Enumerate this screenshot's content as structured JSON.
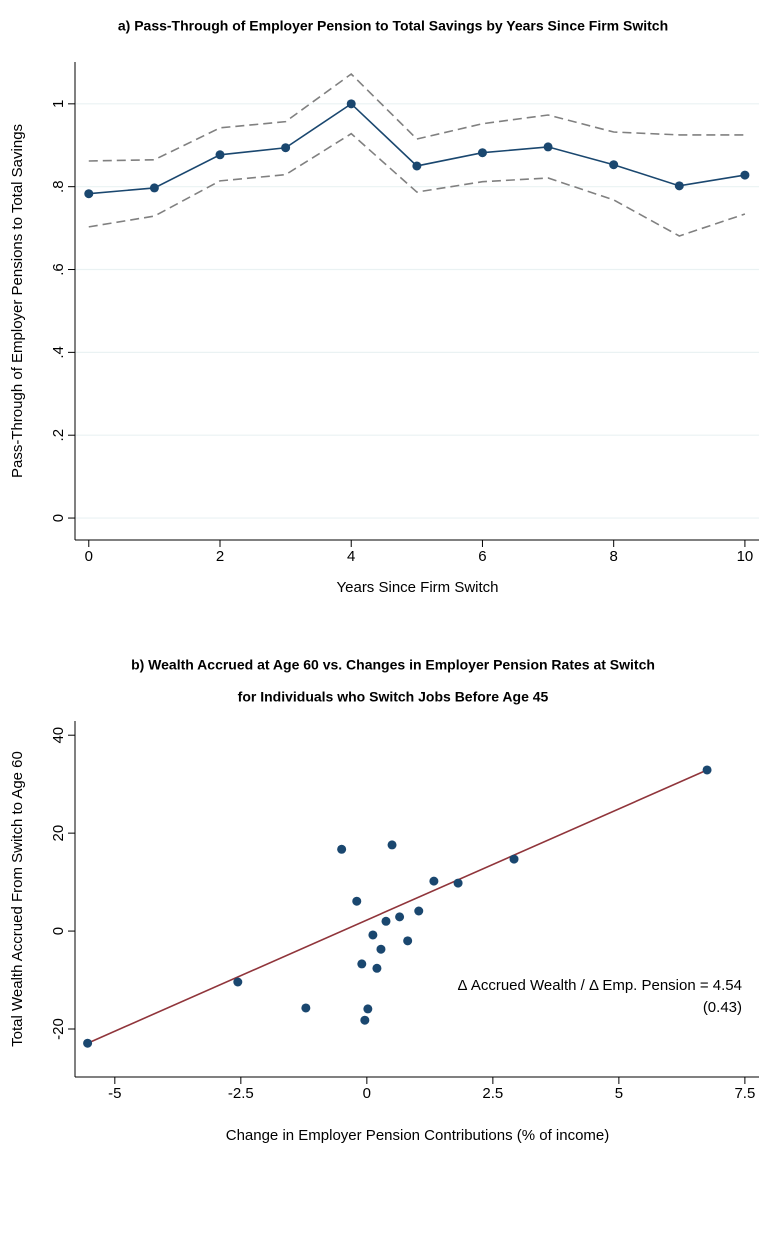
{
  "chart_data": [
    {
      "type": "line",
      "title": "a) Pass-Through of Employer Pension to Total Savings by Years Since Firm Switch",
      "x_label": "Years Since Firm Switch",
      "y_label": "Pass-Through of Employer Pensions to Total Savings",
      "x": [
        0,
        1,
        2,
        3,
        4,
        5,
        6,
        7,
        8,
        9,
        10
      ],
      "series": [
        {
          "color": "#1a476f",
          "style": "solid",
          "marker": true,
          "values": [
            0.783,
            0.797,
            0.877,
            0.894,
            1.0,
            0.85,
            0.882,
            0.896,
            0.853,
            0.802,
            0.828
          ]
        },
        {
          "color": "#808080",
          "style": "dashed",
          "marker": false,
          "values": [
            0.862,
            0.865,
            0.942,
            0.957,
            1.072,
            0.915,
            0.952,
            0.973,
            0.932,
            0.925,
            0.925
          ]
        },
        {
          "color": "#808080",
          "style": "dashed",
          "marker": false,
          "values": [
            0.703,
            0.729,
            0.814,
            0.829,
            0.928,
            0.787,
            0.812,
            0.821,
            0.768,
            0.681,
            0.734
          ]
        }
      ],
      "xlim": [
        -0.21,
        10.23
      ],
      "xticks": [
        0,
        2,
        4,
        6,
        8,
        10
      ],
      "ylim": [
        -0.053,
        1.101
      ],
      "yticks": [
        0,
        {
          "value": 0.2,
          "label": ".2"
        },
        {
          "value": 0.4,
          "label": ".4"
        },
        {
          "value": 0.6,
          "label": ".6"
        },
        {
          "value": 0.8,
          "label": ".8"
        },
        1
      ],
      "grid": true
    },
    {
      "type": "scatter",
      "title": "b) Wealth Accrued at Age 60 vs. Changes in Employer Pension Rates at Switch",
      "subtitle": "for Individuals who Switch Jobs Before Age 45",
      "x_label": "Change in Employer Pension Contributions (% of income)",
      "y_label": "Total Wealth Accrued From Switch to Age 60",
      "series": [
        {
          "kind": "scatter",
          "color": "#1a476f",
          "x": [
            -5.54,
            -2.56,
            -1.21,
            -0.5,
            -0.2,
            -0.1,
            -0.04,
            0.02,
            0.12,
            0.2,
            0.28,
            0.38,
            0.5,
            0.65,
            0.81,
            1.03,
            1.33,
            1.81,
            2.92,
            6.75
          ],
          "values": [
            -22.9,
            -10.4,
            -15.7,
            16.7,
            6.1,
            -6.7,
            -18.2,
            -15.9,
            -0.8,
            -7.6,
            -3.7,
            2.0,
            17.6,
            2.9,
            -2.0,
            4.1,
            10.2,
            9.8,
            14.7,
            32.9
          ]
        },
        {
          "kind": "line",
          "color": "#90353b",
          "x": [
            -5.54,
            6.75
          ],
          "values": [
            -22.9,
            32.9
          ]
        }
      ],
      "annotations": [
        "Δ Accrued Wealth / Δ Emp. Pension = 4.54",
        "(0.43)"
      ],
      "xlim": [
        -5.79,
        7.8
      ],
      "xticks": [
        -5,
        -2.5,
        0,
        2.5,
        5,
        7.5
      ],
      "ylim": [
        -29.8,
        42.9
      ],
      "yticks": [
        -20,
        0,
        20,
        40
      ],
      "grid": false
    }
  ]
}
